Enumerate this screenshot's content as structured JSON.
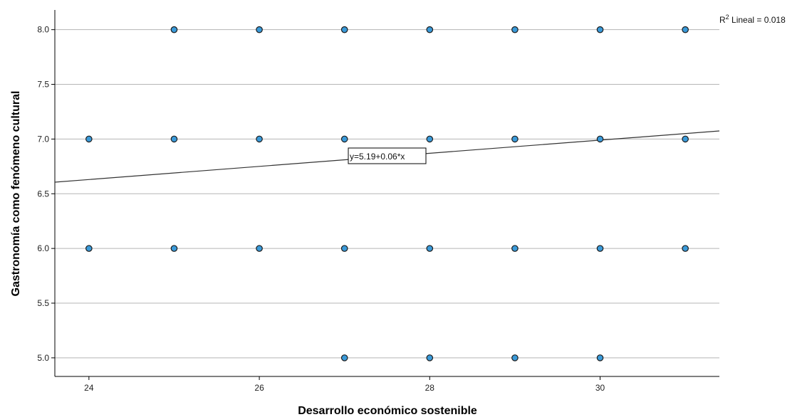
{
  "chart_data": {
    "type": "scatter",
    "title": "",
    "xlabel": "Desarrollo económico sostenible",
    "ylabel": "Gastronomía como fenómeno  cultural",
    "xlim": [
      23.6,
      31.4
    ],
    "ylim": [
      4.83,
      8.18
    ],
    "xticks": [
      24,
      26,
      28,
      30
    ],
    "xtick_labels": [
      "24",
      "26",
      "28",
      "30"
    ],
    "yticks": [
      5.0,
      5.5,
      6.0,
      6.5,
      7.0,
      7.5,
      8.0
    ],
    "ytick_labels": [
      "5.0",
      "5.5",
      "6.0",
      "6.5",
      "7.0",
      "7.5",
      "8.0"
    ],
    "grid": "horizontal",
    "points": [
      {
        "x": 24,
        "y": 7
      },
      {
        "x": 24,
        "y": 6
      },
      {
        "x": 25,
        "y": 8
      },
      {
        "x": 25,
        "y": 7
      },
      {
        "x": 25,
        "y": 6
      },
      {
        "x": 26,
        "y": 8
      },
      {
        "x": 26,
        "y": 7
      },
      {
        "x": 26,
        "y": 6
      },
      {
        "x": 27,
        "y": 8
      },
      {
        "x": 27,
        "y": 7
      },
      {
        "x": 27,
        "y": 6
      },
      {
        "x": 27,
        "y": 5
      },
      {
        "x": 28,
        "y": 8
      },
      {
        "x": 28,
        "y": 7
      },
      {
        "x": 28,
        "y": 6
      },
      {
        "x": 28,
        "y": 5
      },
      {
        "x": 29,
        "y": 8
      },
      {
        "x": 29,
        "y": 7
      },
      {
        "x": 29,
        "y": 6
      },
      {
        "x": 29,
        "y": 5
      },
      {
        "x": 30,
        "y": 8
      },
      {
        "x": 30,
        "y": 7
      },
      {
        "x": 30,
        "y": 6
      },
      {
        "x": 30,
        "y": 5
      },
      {
        "x": 31,
        "y": 8
      },
      {
        "x": 31,
        "y": 7
      },
      {
        "x": 31,
        "y": 6
      }
    ],
    "fit_line": {
      "intercept": 5.19,
      "slope": 0.06
    },
    "fit_equation_label": "y=5.19+0.06*x",
    "r2_prefix": "R",
    "r2_superscript": "2",
    "r2_suffix": " Lineal = 0.018",
    "colors": {
      "marker_fill": "#3a9ad9",
      "marker_stroke": "#1b1b1b",
      "grid": "#b5b5b5",
      "fit_line": "#333333",
      "axis": "#000000"
    }
  }
}
